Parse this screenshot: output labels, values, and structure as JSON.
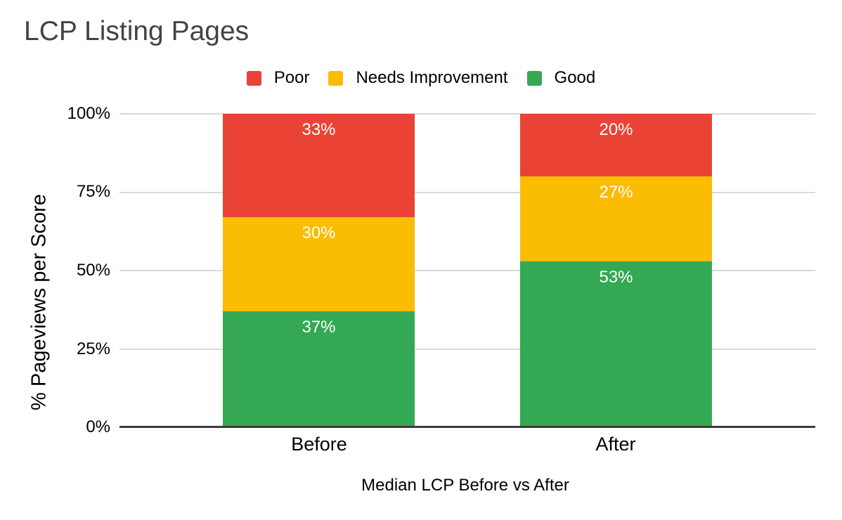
{
  "chart_data": {
    "type": "bar",
    "variant": "stacked-column-100",
    "title": "LCP Listing Pages",
    "categories": [
      "Before",
      "After"
    ],
    "series": [
      {
        "name": "Good",
        "color": "#34A853",
        "values": [
          37,
          53
        ]
      },
      {
        "name": "Needs Improvement",
        "color": "#FBBC04",
        "values": [
          30,
          27
        ]
      },
      {
        "name": "Poor",
        "color": "#EA4335",
        "values": [
          33,
          20
        ]
      }
    ],
    "data_label_format": "{value}%",
    "legend": {
      "position": "top",
      "entries": [
        {
          "label": "Poor",
          "color": "#EA4335"
        },
        {
          "label": "Needs Improvement",
          "color": "#FBBC04"
        },
        {
          "label": "Good",
          "color": "#34A853"
        }
      ]
    },
    "xlabel": "Median LCP Before vs After",
    "ylabel": "% Pageviews per Score",
    "ylim": [
      0,
      100
    ],
    "yticks": [
      "0%",
      "25%",
      "50%",
      "75%",
      "100%"
    ],
    "grid": true,
    "styles": {
      "background": "#ffffff",
      "title_color": "#434343",
      "axis_text_color": "#000000",
      "data_label_color": "#ffffff",
      "gridline_color": "#d9d9d9",
      "baseline_color": "#3c3c3c"
    }
  }
}
